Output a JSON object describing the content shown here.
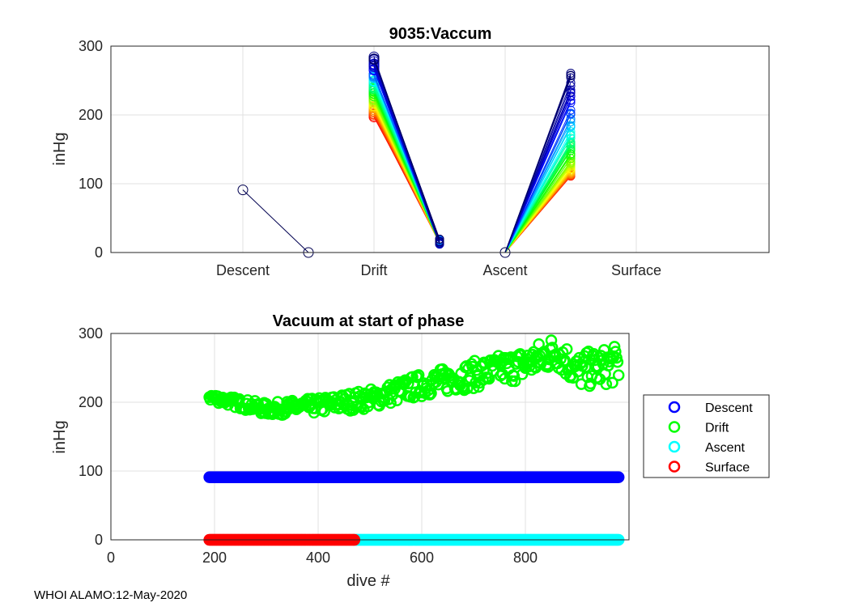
{
  "footer": "WHOI ALAMO:12-May-2020",
  "chart_data": [
    {
      "type": "line",
      "title": "9035:Vaccum",
      "xlabel": "",
      "ylabel": "inHg",
      "ylim": [
        0,
        300
      ],
      "yticks": [
        0,
        100,
        200,
        300
      ],
      "categories": [
        "Descent",
        "Drift",
        "Ascent",
        "Surface"
      ],
      "grid": true,
      "segments": [
        {
          "phase": "Descent",
          "start": 91,
          "end": 0
        },
        {
          "phase": "Drift",
          "start_range": [
            182,
            290
          ],
          "end_range": [
            12,
            20
          ]
        },
        {
          "phase": "Ascent",
          "start": 0,
          "end_range": [
            111,
            270
          ]
        }
      ]
    },
    {
      "type": "scatter",
      "title": "Vacuum at start of phase",
      "xlabel": "dive #",
      "ylabel": "inHg",
      "xlim": [
        0,
        1000
      ],
      "ylim": [
        0,
        300
      ],
      "xticks": [
        0,
        200,
        400,
        600,
        800
      ],
      "yticks": [
        0,
        100,
        200,
        300
      ],
      "grid": true,
      "legend_position": "outside-right",
      "series": [
        {
          "name": "Descent",
          "color": "#0000ff",
          "x_range": [
            190,
            980
          ],
          "y": 91
        },
        {
          "name": "Drift",
          "color": "#00ff00",
          "x_range": [
            190,
            980
          ],
          "trend": [
            [
              190,
              208
            ],
            [
              300,
              190
            ],
            [
              400,
              195
            ],
            [
              500,
              205
            ],
            [
              600,
              225
            ],
            [
              700,
              240
            ],
            [
              800,
              255
            ],
            [
              860,
              275
            ],
            [
              900,
              245
            ],
            [
              980,
              255
            ]
          ]
        },
        {
          "name": "Ascent",
          "color": "#00ffff",
          "x_range": [
            470,
            980
          ],
          "y": 0
        },
        {
          "name": "Surface",
          "color": "#ff0000",
          "x_range": [
            190,
            470
          ],
          "y": 0
        }
      ]
    }
  ]
}
